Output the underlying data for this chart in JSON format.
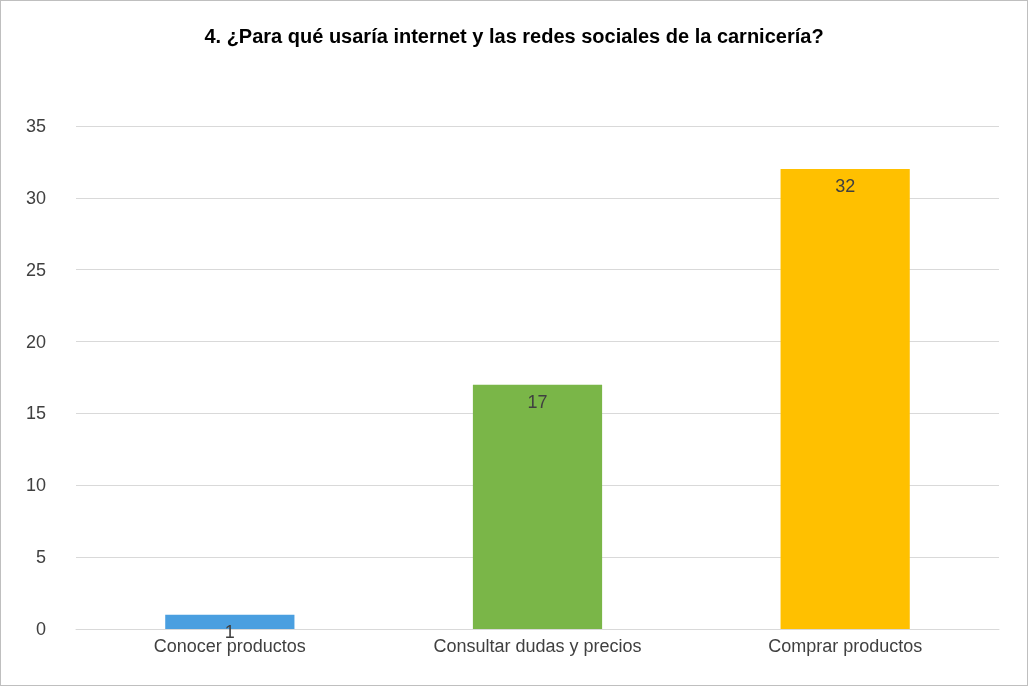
{
  "chart_data": {
    "type": "bar",
    "title": "4. ¿Para qué usaría internet y las redes sociales de la carnicería?",
    "categories": [
      "Conocer productos",
      "Consultar dudas y precios",
      "Comprar productos"
    ],
    "values": [
      1,
      17,
      32
    ],
    "colors": [
      "#4a9fe0",
      "#7ab648",
      "#ffc000"
    ],
    "ylim": [
      0,
      35
    ],
    "yticks": [
      0,
      5,
      10,
      15,
      20,
      25,
      30,
      35
    ],
    "grid": "y",
    "data_labels": true
  }
}
